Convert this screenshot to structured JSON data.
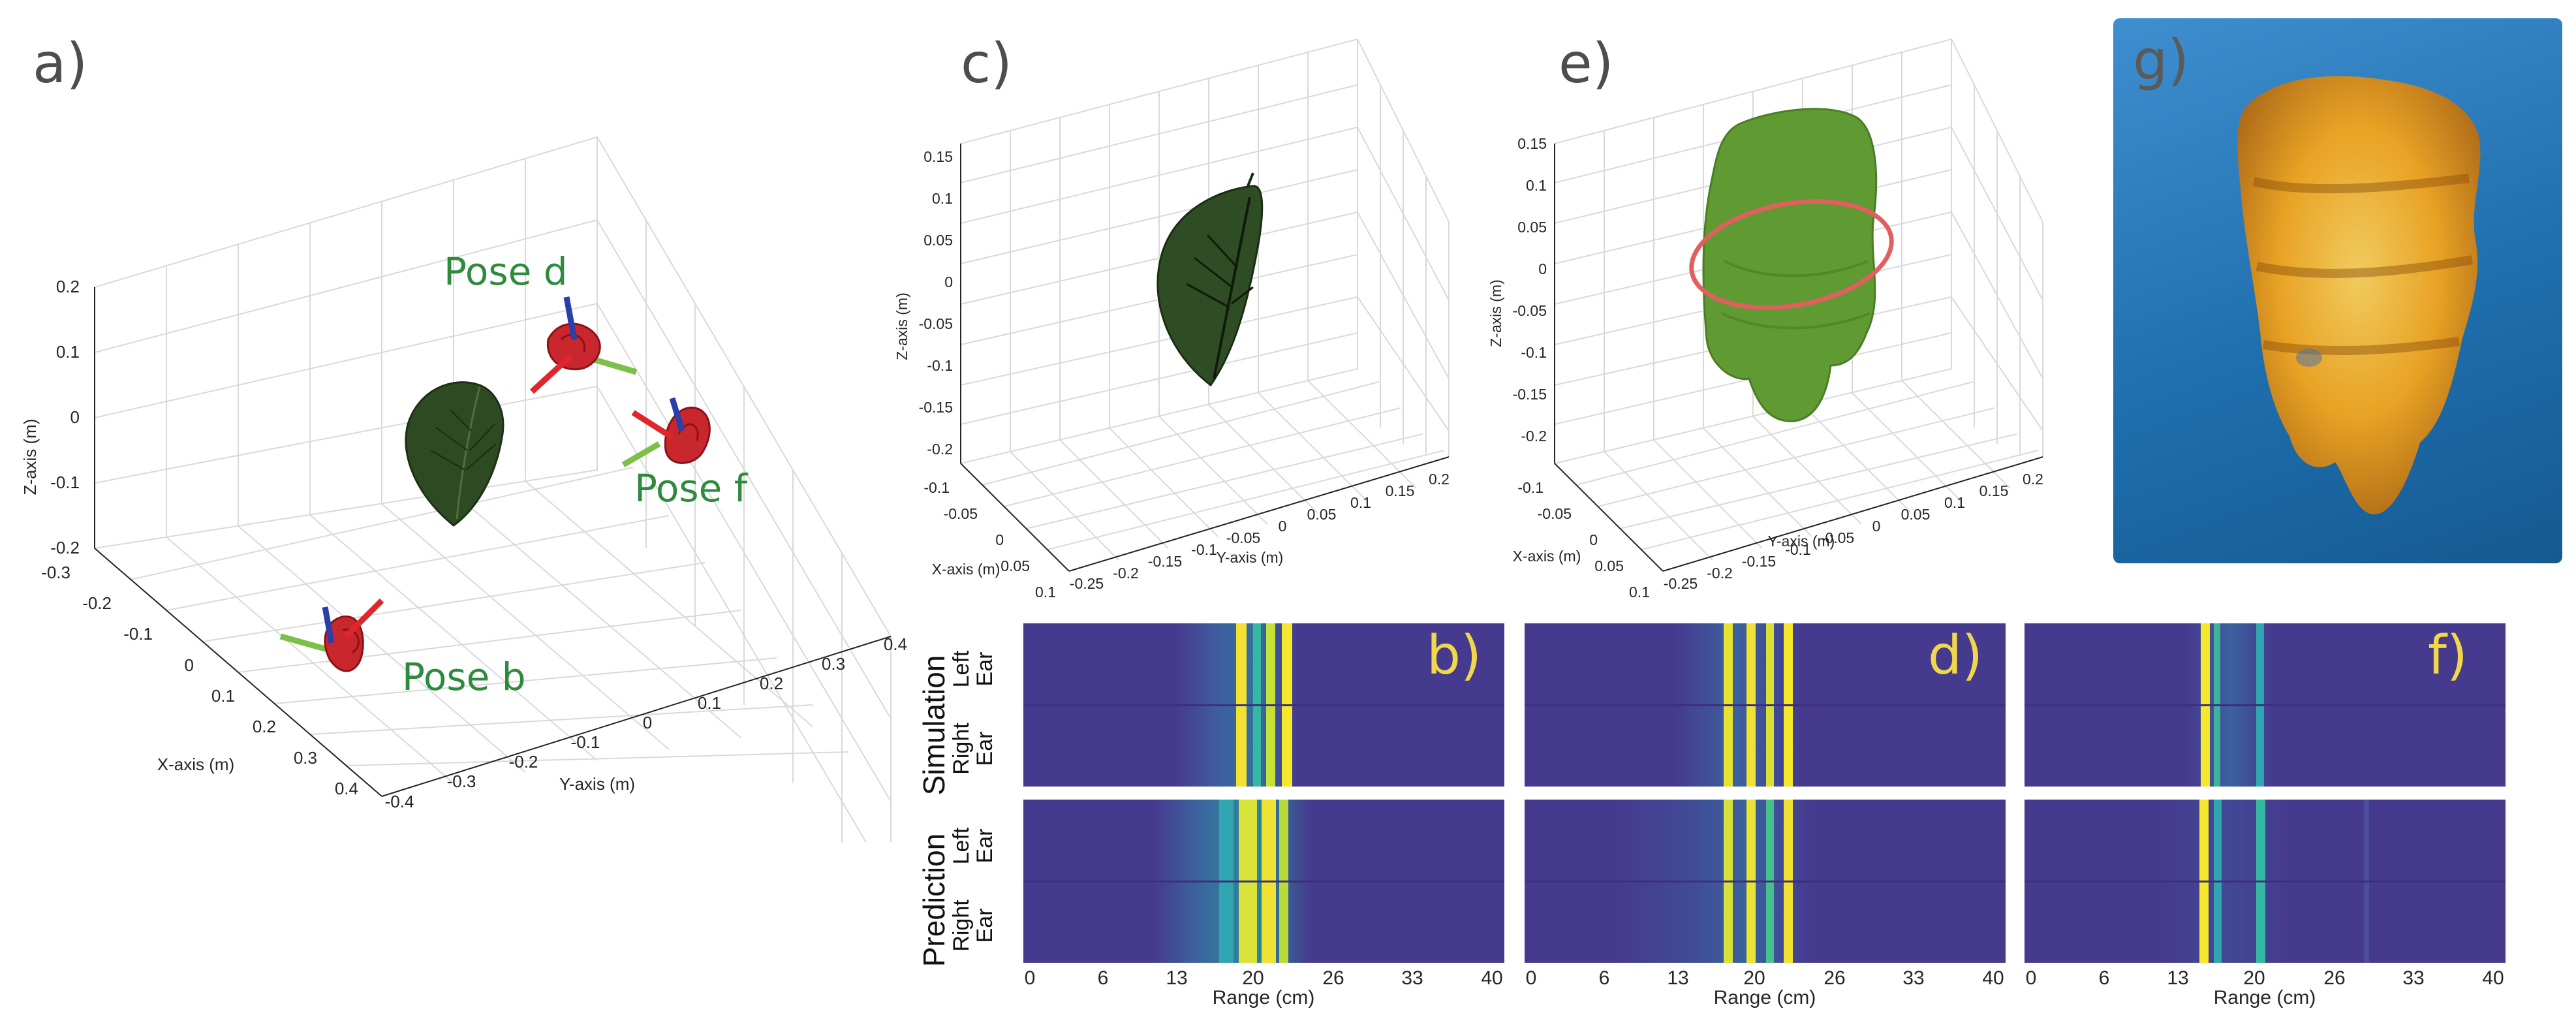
{
  "panels": {
    "a": "a)",
    "b": "b)",
    "c": "c)",
    "d": "d)",
    "e": "e)",
    "f": "f)",
    "g": "g)"
  },
  "panel_a": {
    "z_label": "Z-axis (m)",
    "x_label": "X-axis (m)",
    "y_label": "Y-axis (m)",
    "z_ticks": [
      "0.2",
      "0.1",
      "0",
      "-0.1",
      "-0.2"
    ],
    "x_ticks": [
      "-0.3",
      "-0.2",
      "-0.1",
      "0",
      "0.1",
      "0.2",
      "0.3",
      "0.4"
    ],
    "y_ticks": [
      "-0.4",
      "-0.3",
      "-0.2",
      "-0.1",
      "0",
      "0.1",
      "0.2",
      "0.3",
      "0.4"
    ],
    "pose_b": "Pose b",
    "pose_d": "Pose d",
    "pose_f": "Pose f"
  },
  "panel_c": {
    "z_label": "Z-axis (m)",
    "x_label": "X-axis (m)",
    "y_label": "Y-axis (m)",
    "z_ticks": [
      "0.15",
      "0.1",
      "0.05",
      "0",
      "-0.05",
      "-0.1",
      "-0.15",
      "-0.2"
    ],
    "x_ticks": [
      "-0.1",
      "-0.05",
      "0",
      "0.05",
      "0.1"
    ],
    "y_ticks": [
      "-0.25",
      "-0.2",
      "-0.15",
      "-0.1",
      "-0.05",
      "0",
      "0.05",
      "0.1",
      "0.15",
      "0.2"
    ]
  },
  "panel_e": {
    "z_label": "Z-axis (m)",
    "x_label": "X-axis (m)",
    "y_label": "Y-axis (m)",
    "z_ticks": [
      "0.15",
      "0.1",
      "0.05",
      "0",
      "-0.05",
      "-0.1",
      "-0.15",
      "-0.2"
    ],
    "x_ticks": [
      "-0.1",
      "-0.05",
      "0",
      "0.05",
      "0.1"
    ],
    "y_ticks": [
      "-0.25",
      "-0.2",
      "-0.15",
      "-0.1",
      "-0.05",
      "0",
      "0.05",
      "0.1",
      "0.15",
      "0.2"
    ]
  },
  "spectrograms": {
    "row_simulation": "Simulation",
    "row_prediction": "Prediction",
    "left_ear_line1": "Left",
    "left_ear_line2": "Ear",
    "right_ear_line1": "Right",
    "right_ear_line2": "Ear",
    "range_ticks": [
      "0",
      "6",
      "13",
      "20",
      "26",
      "33",
      "40"
    ],
    "range_label": "Range (cm)"
  },
  "colors": {
    "background_blue": "#463a8f",
    "leaf_green": "#2d4a23",
    "volume_green": "#5f9a32",
    "ellipse_red": "#e06060",
    "pose_label_green": "#2e8b3d",
    "spec_letter_yellow": "#f0d84a",
    "g_background": "#1f6fae",
    "g_volume": "#f3a51d"
  }
}
